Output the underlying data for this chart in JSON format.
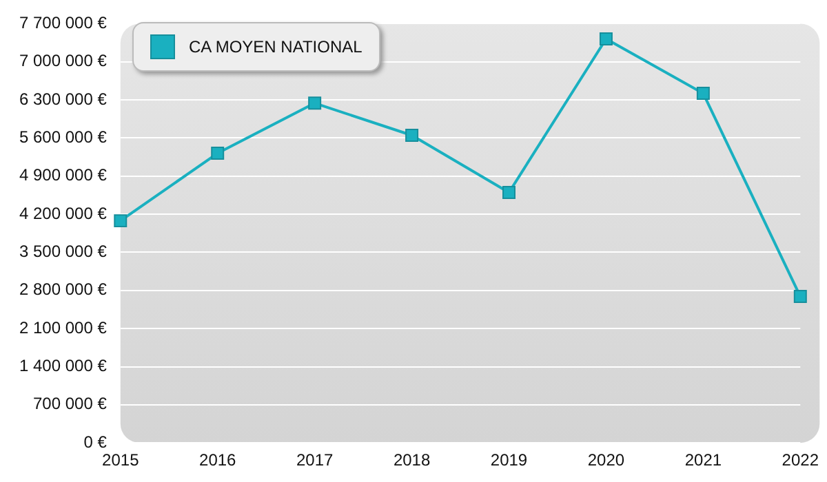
{
  "chart_data": {
    "type": "line",
    "categories": [
      "2015",
      "2016",
      "2017",
      "2018",
      "2019",
      "2020",
      "2021",
      "2022"
    ],
    "series": [
      {
        "name": "CA MOYEN NATIONAL",
        "color": "#1ab0c0",
        "values": [
          4080000,
          5320000,
          6240000,
          5650000,
          4600000,
          7420000,
          6420000,
          2690000
        ]
      }
    ],
    "ylim": [
      0,
      7700000
    ],
    "yticks": [
      {
        "value": 0,
        "label": "0 €"
      },
      {
        "value": 700000,
        "label": "700 000 €"
      },
      {
        "value": 1400000,
        "label": "1 400 000 €"
      },
      {
        "value": 2100000,
        "label": "2 100 000 €"
      },
      {
        "value": 2800000,
        "label": "2 800 000 €"
      },
      {
        "value": 3500000,
        "label": "3 500 000 €"
      },
      {
        "value": 4200000,
        "label": "4 200 000 €"
      },
      {
        "value": 4900000,
        "label": "4 900 000 €"
      },
      {
        "value": 5600000,
        "label": "5 600 000 €"
      },
      {
        "value": 6300000,
        "label": "6 300 000 €"
      },
      {
        "value": 7000000,
        "label": "7 000 000 €"
      },
      {
        "value": 7700000,
        "label": "7 700 000 €"
      }
    ],
    "grid": "y",
    "legend": "top left",
    "marker": "square",
    "line_style": "solid"
  }
}
